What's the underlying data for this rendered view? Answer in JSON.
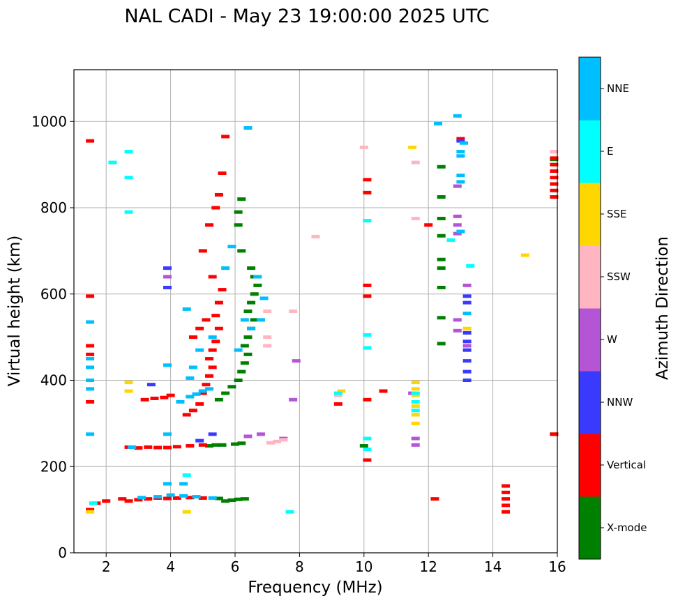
{
  "chart_data": {
    "type": "scatter",
    "title": "NAL CADI - May 23 19:00:00 2025 UTC",
    "xlabel": "Frequency (MHz)",
    "ylabel": "Virtual height (km)",
    "xlim": [
      1,
      16
    ],
    "ylim": [
      0,
      1120
    ],
    "xticks": [
      2,
      4,
      6,
      8,
      10,
      12,
      14,
      16
    ],
    "yticks": [
      0,
      200,
      400,
      600,
      800,
      1000
    ],
    "grid": true,
    "colorbar": {
      "label": "Azimuth Direction",
      "categories": [
        {
          "name": "X-mode",
          "color": "#008000"
        },
        {
          "name": "Vertical",
          "color": "#ff0000"
        },
        {
          "name": "NNW",
          "color": "#3a3aff"
        },
        {
          "name": "W",
          "color": "#b455d6"
        },
        {
          "name": "SSW",
          "color": "#ffb6c1"
        },
        {
          "name": "SSE",
          "color": "#ffd700"
        },
        {
          "name": "E",
          "color": "#00ffff"
        },
        {
          "name": "NNE",
          "color": "#00bfff"
        }
      ]
    },
    "series": [
      {
        "name": "X-mode",
        "points": [
          [
            5.7,
            120
          ],
          [
            5.9,
            122
          ],
          [
            6.1,
            124
          ],
          [
            6.3,
            125
          ],
          [
            5.5,
            126
          ],
          [
            5.2,
            248
          ],
          [
            5.4,
            250
          ],
          [
            5.6,
            250
          ],
          [
            6.0,
            252
          ],
          [
            6.2,
            254
          ],
          [
            5.5,
            355
          ],
          [
            5.7,
            370
          ],
          [
            5.9,
            385
          ],
          [
            6.1,
            400
          ],
          [
            6.2,
            420
          ],
          [
            6.3,
            440
          ],
          [
            6.4,
            460
          ],
          [
            6.3,
            480
          ],
          [
            6.4,
            500
          ],
          [
            6.5,
            520
          ],
          [
            6.6,
            540
          ],
          [
            6.4,
            560
          ],
          [
            6.5,
            580
          ],
          [
            6.6,
            600
          ],
          [
            6.7,
            620
          ],
          [
            6.6,
            640
          ],
          [
            6.5,
            660
          ],
          [
            6.2,
            700
          ],
          [
            6.1,
            760
          ],
          [
            6.1,
            790
          ],
          [
            6.2,
            820
          ],
          [
            10.0,
            248
          ],
          [
            12.4,
            485
          ],
          [
            12.4,
            545
          ],
          [
            12.4,
            615
          ],
          [
            12.4,
            660
          ],
          [
            12.4,
            680
          ],
          [
            12.4,
            735
          ],
          [
            12.4,
            775
          ],
          [
            12.4,
            825
          ],
          [
            12.4,
            895
          ],
          [
            15.9,
            275
          ],
          [
            15.9,
            912
          ]
        ]
      },
      {
        "name": "Vertical",
        "points": [
          [
            1.5,
            100
          ],
          [
            1.7,
            115
          ],
          [
            2.0,
            120
          ],
          [
            2.5,
            125
          ],
          [
            2.7,
            120
          ],
          [
            3.0,
            123
          ],
          [
            3.3,
            125
          ],
          [
            3.6,
            127
          ],
          [
            3.9,
            126
          ],
          [
            4.2,
            127
          ],
          [
            4.6,
            128
          ],
          [
            5.0,
            127
          ],
          [
            2.7,
            245
          ],
          [
            3.0,
            243
          ],
          [
            3.3,
            245
          ],
          [
            3.6,
            244
          ],
          [
            3.9,
            244
          ],
          [
            4.2,
            246
          ],
          [
            4.6,
            248
          ],
          [
            5.0,
            250
          ],
          [
            1.5,
            350
          ],
          [
            1.5,
            460
          ],
          [
            1.5,
            480
          ],
          [
            1.5,
            595
          ],
          [
            1.5,
            955
          ],
          [
            3.2,
            355
          ],
          [
            3.5,
            358
          ],
          [
            3.8,
            360
          ],
          [
            4.0,
            365
          ],
          [
            4.5,
            320
          ],
          [
            4.7,
            330
          ],
          [
            4.9,
            345
          ],
          [
            5.0,
            370
          ],
          [
            5.1,
            390
          ],
          [
            5.2,
            410
          ],
          [
            5.3,
            430
          ],
          [
            5.2,
            450
          ],
          [
            5.3,
            470
          ],
          [
            5.4,
            490
          ],
          [
            5.5,
            520
          ],
          [
            5.4,
            550
          ],
          [
            5.5,
            580
          ],
          [
            5.6,
            610
          ],
          [
            5.3,
            640
          ],
          [
            5.0,
            700
          ],
          [
            5.2,
            760
          ],
          [
            5.4,
            800
          ],
          [
            5.5,
            830
          ],
          [
            5.6,
            880
          ],
          [
            5.7,
            965
          ],
          [
            4.7,
            500
          ],
          [
            4.9,
            520
          ],
          [
            5.1,
            540
          ],
          [
            9.2,
            345
          ],
          [
            10.1,
            215
          ],
          [
            10.1,
            355
          ],
          [
            10.1,
            595
          ],
          [
            10.1,
            620
          ],
          [
            10.1,
            835
          ],
          [
            10.1,
            865
          ],
          [
            10.6,
            375
          ],
          [
            12.0,
            760
          ],
          [
            12.2,
            125
          ],
          [
            14.4,
            95
          ],
          [
            14.4,
            110
          ],
          [
            14.4,
            125
          ],
          [
            14.4,
            140
          ],
          [
            14.4,
            155
          ],
          [
            15.9,
            825
          ],
          [
            15.9,
            840
          ],
          [
            15.9,
            855
          ],
          [
            15.9,
            870
          ],
          [
            15.9,
            885
          ],
          [
            15.9,
            900
          ],
          [
            15.9,
            915
          ],
          [
            15.9,
            275
          ],
          [
            13.0,
            960
          ]
        ]
      },
      {
        "name": "NNW",
        "points": [
          [
            3.9,
            615
          ],
          [
            3.9,
            660
          ],
          [
            3.4,
            390
          ],
          [
            4.9,
            260
          ],
          [
            5.3,
            275
          ],
          [
            13.2,
            400
          ],
          [
            13.2,
            420
          ],
          [
            13.2,
            445
          ],
          [
            13.2,
            470
          ],
          [
            13.2,
            490
          ],
          [
            13.2,
            510
          ],
          [
            13.2,
            580
          ],
          [
            13.2,
            595
          ],
          [
            13.0,
            955
          ]
        ]
      },
      {
        "name": "W",
        "points": [
          [
            3.9,
            640
          ],
          [
            6.4,
            270
          ],
          [
            6.8,
            275
          ],
          [
            7.5,
            265
          ],
          [
            7.9,
            445
          ],
          [
            7.8,
            355
          ],
          [
            11.6,
            250
          ],
          [
            11.6,
            265
          ],
          [
            11.5,
            370
          ],
          [
            12.9,
            515
          ],
          [
            12.9,
            540
          ],
          [
            12.9,
            740
          ],
          [
            12.9,
            760
          ],
          [
            12.9,
            780
          ],
          [
            12.9,
            850
          ],
          [
            13.2,
            620
          ],
          [
            13.2,
            480
          ]
        ]
      },
      {
        "name": "SSW",
        "points": [
          [
            7.1,
            255
          ],
          [
            7.3,
            258
          ],
          [
            7.5,
            262
          ],
          [
            7.0,
            480
          ],
          [
            7.0,
            500
          ],
          [
            7.0,
            560
          ],
          [
            7.8,
            560
          ],
          [
            8.5,
            733
          ],
          [
            9.2,
            365
          ],
          [
            10.0,
            940
          ],
          [
            11.6,
            905
          ],
          [
            11.6,
            775
          ],
          [
            15.9,
            930
          ]
        ]
      },
      {
        "name": "SSE",
        "points": [
          [
            1.5,
            95
          ],
          [
            2.7,
            375
          ],
          [
            2.7,
            395
          ],
          [
            4.5,
            95
          ],
          [
            9.3,
            375
          ],
          [
            11.6,
            395
          ],
          [
            11.6,
            380
          ],
          [
            11.6,
            365
          ],
          [
            11.6,
            340
          ],
          [
            11.6,
            320
          ],
          [
            11.6,
            300
          ],
          [
            11.5,
            940
          ],
          [
            13.2,
            520
          ],
          [
            15.0,
            690
          ]
        ]
      },
      {
        "name": "E",
        "points": [
          [
            1.6,
            115
          ],
          [
            2.2,
            905
          ],
          [
            2.7,
            930
          ],
          [
            2.7,
            870
          ],
          [
            2.7,
            790
          ],
          [
            4.5,
            180
          ],
          [
            7.7,
            95
          ],
          [
            9.2,
            370
          ],
          [
            10.1,
            265
          ],
          [
            10.1,
            240
          ],
          [
            10.1,
            475
          ],
          [
            10.1,
            505
          ],
          [
            10.1,
            770
          ],
          [
            11.6,
            330
          ],
          [
            11.6,
            350
          ],
          [
            11.6,
            370
          ],
          [
            12.7,
            725
          ],
          [
            13.3,
            665
          ]
        ]
      },
      {
        "name": "NNE",
        "points": [
          [
            1.5,
            380
          ],
          [
            1.5,
            400
          ],
          [
            1.5,
            430
          ],
          [
            1.5,
            450
          ],
          [
            1.5,
            535
          ],
          [
            1.5,
            275
          ],
          [
            3.1,
            128
          ],
          [
            3.6,
            130
          ],
          [
            4.0,
            134
          ],
          [
            4.4,
            132
          ],
          [
            4.8,
            130
          ],
          [
            5.3,
            127
          ],
          [
            3.9,
            160
          ],
          [
            4.4,
            160
          ],
          [
            2.8,
            245
          ],
          [
            3.9,
            435
          ],
          [
            3.9,
            275
          ],
          [
            4.3,
            350
          ],
          [
            4.6,
            362
          ],
          [
            4.8,
            368
          ],
          [
            5.0,
            375
          ],
          [
            5.2,
            380
          ],
          [
            4.6,
            405
          ],
          [
            4.7,
            430
          ],
          [
            4.9,
            470
          ],
          [
            5.3,
            500
          ],
          [
            6.1,
            470
          ],
          [
            6.3,
            540
          ],
          [
            6.5,
            520
          ],
          [
            6.8,
            540
          ],
          [
            6.9,
            590
          ],
          [
            6.7,
            640
          ],
          [
            5.7,
            660
          ],
          [
            5.9,
            710
          ],
          [
            4.5,
            565
          ],
          [
            6.4,
            985
          ],
          [
            12.3,
            995
          ],
          [
            12.9,
            1013
          ],
          [
            13.0,
            920
          ],
          [
            13.0,
            930
          ],
          [
            13.0,
            860
          ],
          [
            13.0,
            875
          ],
          [
            13.0,
            745
          ],
          [
            13.2,
            555
          ],
          [
            13.1,
            950
          ]
        ]
      }
    ]
  }
}
